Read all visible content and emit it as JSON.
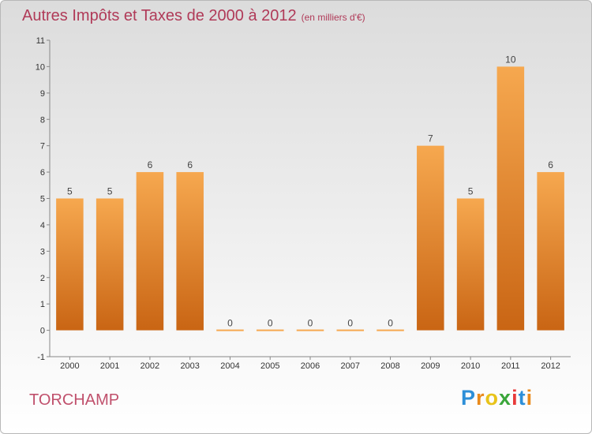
{
  "title": "Autres Impôts et Taxes de 2000 à 2012",
  "subtitle": "(en milliers d'€)",
  "town": "TORCHAMP",
  "logo": {
    "text": "Proxiti",
    "letters": [
      "P",
      "r",
      "o",
      "x",
      "i",
      "t",
      "i"
    ],
    "colors": [
      "#2d8fd8",
      "#e98a1c",
      "#e8c31a",
      "#3aa63a",
      "#e83a3a",
      "#2d8fd8",
      "#e98a1c"
    ]
  },
  "colors": {
    "bar_light": "#f6a84f",
    "bar_dark": "#c96514",
    "title": "#b03a58"
  },
  "chart_data": {
    "type": "bar",
    "title": "Autres Impôts et Taxes de 2000 à 2012",
    "subtitle": "(en milliers d'€)",
    "categories": [
      "2000",
      "2001",
      "2002",
      "2003",
      "2004",
      "2005",
      "2006",
      "2007",
      "2008",
      "2009",
      "2010",
      "2011",
      "2012"
    ],
    "values": [
      5,
      5,
      6,
      6,
      0,
      0,
      0,
      0,
      0,
      7,
      5,
      10,
      6
    ],
    "ylim": [
      -1,
      11
    ],
    "yticks": [
      -1,
      0,
      1,
      2,
      3,
      4,
      5,
      6,
      7,
      8,
      9,
      10,
      11
    ],
    "grid": false,
    "legend": "none"
  }
}
